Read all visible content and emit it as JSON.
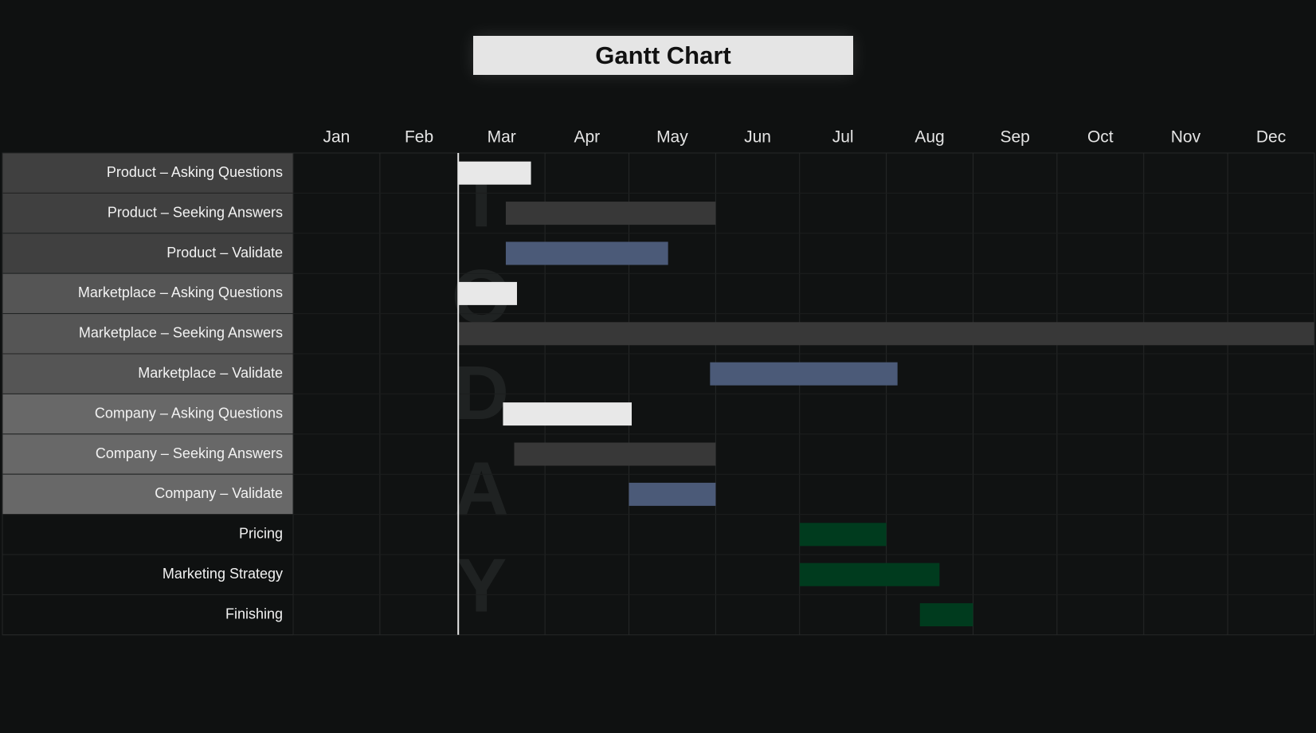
{
  "chart_data": {
    "type": "gantt",
    "title": "Gantt Chart",
    "months": [
      "Jan",
      "Feb",
      "Mar",
      "Apr",
      "May",
      "Jun",
      "Jul",
      "Aug",
      "Sep",
      "Oct",
      "Nov",
      "Dec"
    ],
    "today_marker": {
      "label": "TODAY",
      "date": "Mar 1"
    },
    "task_groups": [
      {
        "name": "Product",
        "color": "#404040"
      },
      {
        "name": "Marketplace",
        "color": "#555555"
      },
      {
        "name": "Company",
        "color": "#686868"
      },
      {
        "name": "Other",
        "color": "#0f1111"
      }
    ],
    "status_colors": {
      "Asking Questions": "#e8e8e8",
      "Seeking Answers": "#383838",
      "Validate": "#4b5a78",
      "Other": "#003b1e"
    },
    "tasks": [
      {
        "label": "Product – Asking Questions",
        "group": "Product",
        "status": "Asking Questions",
        "start": "Mar 1",
        "end": "Mar 26"
      },
      {
        "label": "Product – Seeking Answers",
        "group": "Product",
        "status": "Seeking Answers",
        "start": "Mar 18",
        "end": "May 31"
      },
      {
        "label": "Product – Validate",
        "group": "Product",
        "status": "Validate",
        "start": "Mar 18",
        "end": "May 14"
      },
      {
        "label": "Marketplace – Asking Questions",
        "group": "Marketplace",
        "status": "Asking Questions",
        "start": "Mar 1",
        "end": "Mar 21"
      },
      {
        "label": "Marketplace – Seeking Answers",
        "group": "Marketplace",
        "status": "Seeking Answers",
        "start": "Mar 1",
        "end": "Dec 31"
      },
      {
        "label": "Marketplace – Validate",
        "group": "Marketplace",
        "status": "Validate",
        "start": "May 30",
        "end": "Aug 4"
      },
      {
        "label": "Company – Asking Questions",
        "group": "Company",
        "status": "Asking Questions",
        "start": "Mar 17",
        "end": "May 1"
      },
      {
        "label": "Company – Seeking Answers",
        "group": "Company",
        "status": "Seeking Answers",
        "start": "Mar 21",
        "end": "May 31"
      },
      {
        "label": "Company – Validate",
        "group": "Company",
        "status": "Validate",
        "start": "May 1",
        "end": "May 31"
      },
      {
        "label": "Pricing",
        "group": "Other",
        "status": "Other",
        "start": "Jul 1",
        "end": "Jul 31"
      },
      {
        "label": "Marketing Strategy",
        "group": "Other",
        "status": "Other",
        "start": "Jul 1",
        "end": "Aug 19"
      },
      {
        "label": "Finishing",
        "group": "Other",
        "status": "Other",
        "start": "Aug 13",
        "end": "Aug 31"
      }
    ]
  }
}
